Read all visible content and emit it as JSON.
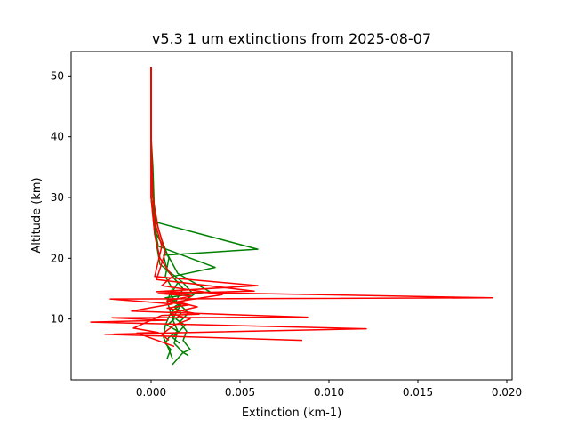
{
  "chart_data": {
    "type": "line",
    "title": "v5.3 1 um extinctions from 2025-08-07",
    "xlabel": "Extinction (km-1)",
    "ylabel": "Altitude (km)",
    "xlim": [
      -0.0045,
      0.0203
    ],
    "ylim": [
      0,
      54
    ],
    "x_ticks": [
      0.0,
      0.005,
      0.01,
      0.015,
      0.02
    ],
    "x_tick_labels": [
      "0.000",
      "0.005",
      "0.010",
      "0.015",
      "0.020"
    ],
    "y_ticks": [
      10,
      20,
      30,
      40,
      50
    ],
    "y_tick_labels": [
      "10",
      "20",
      "30",
      "40",
      "50"
    ],
    "grid": false,
    "colors": {
      "red_series": "#ff0000",
      "green_series": "#008000"
    },
    "series": [
      {
        "color": "green",
        "x": [
          0.0,
          0.0,
          0.0,
          0.0,
          0.0001,
          0.0003,
          0.0006,
          0.001,
          0.0008,
          0.0012,
          0.0009,
          0.0011,
          0.0008,
          0.0007,
          0.001,
          0.0012
        ],
        "y": [
          51.5,
          45,
          40,
          35,
          30,
          26,
          23,
          20,
          17,
          15,
          13,
          11,
          9,
          7,
          5,
          3.5
        ]
      },
      {
        "color": "green",
        "x": [
          0.0,
          0.0,
          0.0,
          0.0001,
          0.0002,
          0.006,
          0.0007,
          0.0009,
          0.0015,
          0.0011,
          0.0016,
          0.0012,
          0.0015,
          0.0013,
          0.0018,
          0.0012
        ],
        "y": [
          51.5,
          45,
          40,
          35,
          26,
          21.5,
          20.5,
          18,
          16,
          14,
          12,
          10,
          8,
          6,
          4.5,
          2.5
        ]
      },
      {
        "color": "green",
        "x": [
          0.0,
          0.0,
          0.0001,
          0.0002,
          0.0004,
          0.0036,
          0.0012,
          0.0018,
          0.0014,
          0.0021,
          0.0016,
          0.002,
          0.0018,
          0.0022,
          0.0018,
          0.0021
        ],
        "y": [
          51.5,
          40,
          30,
          25,
          22,
          18.5,
          17,
          15,
          13,
          11,
          9.5,
          8,
          6.5,
          5,
          4.5,
          4
        ]
      },
      {
        "color": "green",
        "x": [
          0.0,
          0.0,
          0.0001,
          0.0003,
          0.0015,
          0.0033,
          0.0008,
          0.0017,
          0.0011,
          0.0013,
          0.0009,
          0.0015,
          0.001,
          0.0008,
          0.0011,
          0.0009
        ],
        "y": [
          51.5,
          40,
          30,
          24,
          17.5,
          14.5,
          13.5,
          12.5,
          11,
          10,
          9,
          8,
          7,
          6,
          5,
          3.5
        ]
      },
      {
        "color": "green",
        "x": [
          0.0,
          0.0,
          0.0,
          0.0002,
          0.0005,
          0.0018,
          0.0024,
          0.0013,
          0.0017,
          0.0014,
          0.0019,
          0.0016,
          0.0012,
          0.0016
        ],
        "y": [
          51.5,
          40,
          30,
          24,
          19,
          16,
          14,
          12,
          11,
          10,
          9,
          8,
          7,
          6
        ]
      },
      {
        "color": "red",
        "x": [
          0.0,
          0.0,
          0.0,
          0.0002,
          0.0006,
          0.0002,
          0.006,
          0.0003,
          0.0192,
          -0.0023,
          0.0012,
          -0.0011,
          0.0088,
          -0.0022,
          0.0009,
          -0.0034,
          0.0121,
          -0.0026,
          0.0085
        ],
        "y": [
          51.5,
          40,
          30,
          26,
          22,
          17,
          15.5,
          14.5,
          13.5,
          13.3,
          12.5,
          11.3,
          10.3,
          10.2,
          9.8,
          9.5,
          8.4,
          7.5,
          6.5
        ]
      },
      {
        "color": "red",
        "x": [
          0.0,
          0.0,
          0.0001,
          0.0004,
          0.0008,
          0.0003,
          0.0058,
          0.0004,
          0.0023,
          0.0009,
          0.0018,
          0.0026,
          0.0011,
          0.0016,
          0.0022,
          0.0013,
          0.0006,
          0.001
        ],
        "y": [
          51.5,
          40,
          30,
          25,
          21,
          16.5,
          14.6,
          14.2,
          13.8,
          13,
          12.6,
          12,
          11,
          10.5,
          10,
          9,
          7.5,
          6.5
        ]
      },
      {
        "color": "red",
        "x": [
          0.0,
          0.0,
          0.0,
          0.0002,
          0.0005,
          0.0012,
          0.0006,
          0.004,
          0.0011,
          0.0021,
          0.0009,
          0.0027,
          0.0006,
          -0.001,
          0.0004,
          -0.0008,
          0.0013
        ],
        "y": [
          51.5,
          40,
          30,
          24,
          20,
          17,
          15.5,
          14,
          12.7,
          12.3,
          11.8,
          10.8,
          10.6,
          8.5,
          7.8,
          7.7,
          5.5
        ]
      }
    ]
  }
}
